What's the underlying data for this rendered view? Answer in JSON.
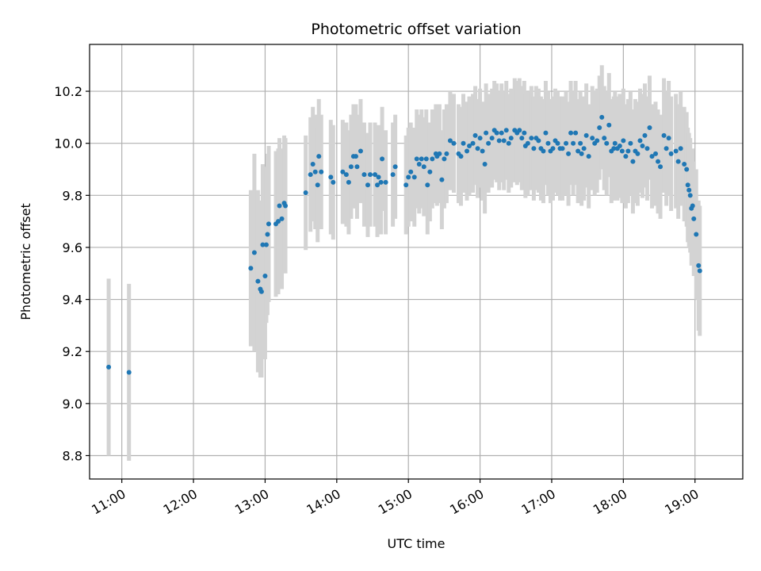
{
  "chart_data": {
    "type": "scatter",
    "title": "Photometric offset variation",
    "xlabel": "UTC time",
    "ylabel": "Photometric offset",
    "x_unit": "UTC hours",
    "x_ticks": [
      "11:00",
      "12:00",
      "13:00",
      "14:00",
      "15:00",
      "16:00",
      "17:00",
      "18:00",
      "19:00"
    ],
    "y_ticks": [
      "8.8",
      "9.0",
      "9.2",
      "9.4",
      "9.6",
      "9.8",
      "10.0",
      "10.2"
    ],
    "xlim": [
      "10:33",
      "19:40"
    ],
    "ylim": [
      8.71,
      10.38
    ],
    "grid": true,
    "marker_color": "#1f77b4",
    "errorbar_color": "#d3d3d3",
    "series": [
      {
        "points": [
          [
            "10:49",
            9.14,
            0.34
          ],
          [
            "11:06",
            9.12,
            0.34
          ],
          [
            "12:48",
            9.52,
            0.3
          ],
          [
            "12:51",
            9.58,
            0.38
          ],
          [
            "12:54",
            9.47,
            0.35
          ],
          [
            "12:56",
            9.44,
            0.34
          ],
          [
            "12:57",
            9.43,
            0.33
          ],
          [
            "12:58",
            9.61,
            0.31
          ],
          [
            "13:00",
            9.49,
            0.32
          ],
          [
            "13:01",
            9.61,
            0.3
          ],
          [
            "13:02",
            9.65,
            0.31
          ],
          [
            "13:03",
            9.69,
            0.3
          ],
          [
            "13:09",
            9.69,
            0.28
          ],
          [
            "13:11",
            9.7,
            0.28
          ],
          [
            "13:12",
            9.76,
            0.26
          ],
          [
            "13:14",
            9.71,
            0.27
          ],
          [
            "13:16",
            9.77,
            0.26
          ],
          [
            "13:17",
            9.76,
            0.26
          ],
          [
            "13:34",
            9.81,
            0.22
          ],
          [
            "13:38",
            9.88,
            0.22
          ],
          [
            "13:40",
            9.92,
            0.22
          ],
          [
            "13:42",
            9.89,
            0.22
          ],
          [
            "13:44",
            9.84,
            0.22
          ],
          [
            "13:45",
            9.95,
            0.22
          ],
          [
            "13:47",
            9.89,
            0.22
          ],
          [
            "13:55",
            9.87,
            0.22
          ],
          [
            "13:57",
            9.85,
            0.22
          ],
          [
            "14:05",
            9.89,
            0.2
          ],
          [
            "14:08",
            9.88,
            0.2
          ],
          [
            "14:10",
            9.85,
            0.2
          ],
          [
            "14:12",
            9.91,
            0.2
          ],
          [
            "14:14",
            9.95,
            0.2
          ],
          [
            "14:16",
            9.95,
            0.2
          ],
          [
            "14:17",
            9.91,
            0.2
          ],
          [
            "14:20",
            9.97,
            0.2
          ],
          [
            "14:23",
            9.88,
            0.2
          ],
          [
            "14:26",
            9.84,
            0.2
          ],
          [
            "14:28",
            9.88,
            0.2
          ],
          [
            "14:32",
            9.88,
            0.2
          ],
          [
            "14:34",
            9.84,
            0.2
          ],
          [
            "14:35",
            9.87,
            0.2
          ],
          [
            "14:37",
            9.85,
            0.2
          ],
          [
            "14:38",
            9.94,
            0.2
          ],
          [
            "14:41",
            9.85,
            0.2
          ],
          [
            "14:47",
            9.88,
            0.2
          ],
          [
            "14:49",
            9.91,
            0.2
          ],
          [
            "14:58",
            9.84,
            0.19
          ],
          [
            "15:00",
            9.87,
            0.19
          ],
          [
            "15:02",
            9.89,
            0.19
          ],
          [
            "15:05",
            9.87,
            0.19
          ],
          [
            "15:07",
            9.94,
            0.19
          ],
          [
            "15:09",
            9.92,
            0.19
          ],
          [
            "15:11",
            9.94,
            0.19
          ],
          [
            "15:13",
            9.91,
            0.19
          ],
          [
            "15:15",
            9.94,
            0.19
          ],
          [
            "15:16",
            9.84,
            0.19
          ],
          [
            "15:18",
            9.89,
            0.19
          ],
          [
            "15:20",
            9.94,
            0.19
          ],
          [
            "15:23",
            9.96,
            0.19
          ],
          [
            "15:24",
            9.95,
            0.19
          ],
          [
            "15:26",
            9.96,
            0.19
          ],
          [
            "15:28",
            9.86,
            0.19
          ],
          [
            "15:30",
            9.94,
            0.19
          ],
          [
            "15:32",
            9.96,
            0.19
          ],
          [
            "15:35",
            10.01,
            0.19
          ],
          [
            "15:38",
            10.0,
            0.19
          ],
          [
            "15:42",
            9.96,
            0.19
          ],
          [
            "15:44",
            9.95,
            0.19
          ],
          [
            "15:46",
            10.0,
            0.19
          ],
          [
            "15:49",
            9.97,
            0.19
          ],
          [
            "15:51",
            9.99,
            0.19
          ],
          [
            "15:54",
            10.0,
            0.19
          ],
          [
            "15:56",
            10.03,
            0.19
          ],
          [
            "15:58",
            9.98,
            0.19
          ],
          [
            "16:00",
            10.02,
            0.19
          ],
          [
            "16:02",
            9.97,
            0.19
          ],
          [
            "16:04",
            9.92,
            0.19
          ],
          [
            "16:05",
            10.04,
            0.19
          ],
          [
            "16:07",
            10.0,
            0.19
          ],
          [
            "16:10",
            10.02,
            0.19
          ],
          [
            "16:12",
            10.05,
            0.19
          ],
          [
            "16:14",
            10.04,
            0.19
          ],
          [
            "16:16",
            10.01,
            0.19
          ],
          [
            "16:18",
            10.04,
            0.19
          ],
          [
            "16:20",
            10.01,
            0.19
          ],
          [
            "16:22",
            10.05,
            0.19
          ],
          [
            "16:24",
            10.0,
            0.19
          ],
          [
            "16:26",
            10.02,
            0.19
          ],
          [
            "16:29",
            10.05,
            0.2
          ],
          [
            "16:31",
            10.04,
            0.2
          ],
          [
            "16:33",
            10.05,
            0.2
          ],
          [
            "16:35",
            10.02,
            0.2
          ],
          [
            "16:37",
            10.04,
            0.2
          ],
          [
            "16:38",
            9.99,
            0.2
          ],
          [
            "16:40",
            10.0,
            0.2
          ],
          [
            "16:43",
            10.02,
            0.2
          ],
          [
            "16:45",
            9.98,
            0.2
          ],
          [
            "16:47",
            10.02,
            0.2
          ],
          [
            "16:49",
            10.01,
            0.2
          ],
          [
            "16:51",
            9.98,
            0.2
          ],
          [
            "16:53",
            9.97,
            0.2
          ],
          [
            "16:55",
            10.04,
            0.2
          ],
          [
            "16:57",
            10.0,
            0.2
          ],
          [
            "16:59",
            9.97,
            0.2
          ],
          [
            "17:01",
            9.98,
            0.2
          ],
          [
            "17:03",
            10.01,
            0.2
          ],
          [
            "17:05",
            10.0,
            0.2
          ],
          [
            "17:07",
            9.98,
            0.2
          ],
          [
            "17:09",
            9.98,
            0.2
          ],
          [
            "17:12",
            10.0,
            0.2
          ],
          [
            "17:14",
            9.96,
            0.2
          ],
          [
            "17:16",
            10.04,
            0.2
          ],
          [
            "17:18",
            10.0,
            0.2
          ],
          [
            "17:20",
            10.04,
            0.2
          ],
          [
            "17:22",
            9.97,
            0.2
          ],
          [
            "17:24",
            10.0,
            0.2
          ],
          [
            "17:25",
            9.96,
            0.2
          ],
          [
            "17:27",
            9.98,
            0.2
          ],
          [
            "17:29",
            10.03,
            0.2
          ],
          [
            "17:31",
            9.95,
            0.2
          ],
          [
            "17:34",
            10.02,
            0.2
          ],
          [
            "17:36",
            10.0,
            0.2
          ],
          [
            "17:38",
            10.01,
            0.2
          ],
          [
            "17:40",
            10.06,
            0.2
          ],
          [
            "17:42",
            10.1,
            0.2
          ],
          [
            "17:44",
            10.02,
            0.2
          ],
          [
            "17:46",
            10.0,
            0.2
          ],
          [
            "17:48",
            10.07,
            0.2
          ],
          [
            "17:50",
            9.97,
            0.2
          ],
          [
            "17:52",
            9.98,
            0.2
          ],
          [
            "17:53",
            10.0,
            0.2
          ],
          [
            "17:55",
            9.98,
            0.2
          ],
          [
            "17:57",
            9.99,
            0.2
          ],
          [
            "17:59",
            9.97,
            0.2
          ],
          [
            "18:00",
            10.01,
            0.2
          ],
          [
            "18:02",
            9.95,
            0.2
          ],
          [
            "18:04",
            9.97,
            0.2
          ],
          [
            "18:06",
            10.0,
            0.2
          ],
          [
            "18:08",
            9.93,
            0.2
          ],
          [
            "18:10",
            9.97,
            0.2
          ],
          [
            "18:12",
            9.96,
            0.2
          ],
          [
            "18:14",
            10.01,
            0.2
          ],
          [
            "18:16",
            9.99,
            0.2
          ],
          [
            "18:18",
            10.03,
            0.2
          ],
          [
            "18:20",
            9.98,
            0.2
          ],
          [
            "18:22",
            10.06,
            0.2
          ],
          [
            "18:24",
            9.95,
            0.2
          ],
          [
            "18:27",
            9.96,
            0.2
          ],
          [
            "18:29",
            9.93,
            0.2
          ],
          [
            "18:31",
            9.91,
            0.2
          ],
          [
            "18:34",
            10.03,
            0.22
          ],
          [
            "18:36",
            9.98,
            0.22
          ],
          [
            "18:38",
            10.02,
            0.22
          ],
          [
            "18:40",
            9.96,
            0.22
          ],
          [
            "18:44",
            9.97,
            0.22
          ],
          [
            "18:46",
            9.93,
            0.22
          ],
          [
            "18:48",
            9.98,
            0.22
          ],
          [
            "18:51",
            9.92,
            0.22
          ],
          [
            "18:53",
            9.9,
            0.22
          ],
          [
            "18:54",
            9.84,
            0.22
          ],
          [
            "18:55",
            9.82,
            0.22
          ],
          [
            "18:56",
            9.8,
            0.22
          ],
          [
            "18:57",
            9.75,
            0.22
          ],
          [
            "18:58",
            9.76,
            0.22
          ],
          [
            "18:59",
            9.71,
            0.22
          ],
          [
            "19:01",
            9.65,
            0.25
          ],
          [
            "19:03",
            9.53,
            0.25
          ],
          [
            "19:04",
            9.51,
            0.25
          ]
        ]
      }
    ]
  }
}
